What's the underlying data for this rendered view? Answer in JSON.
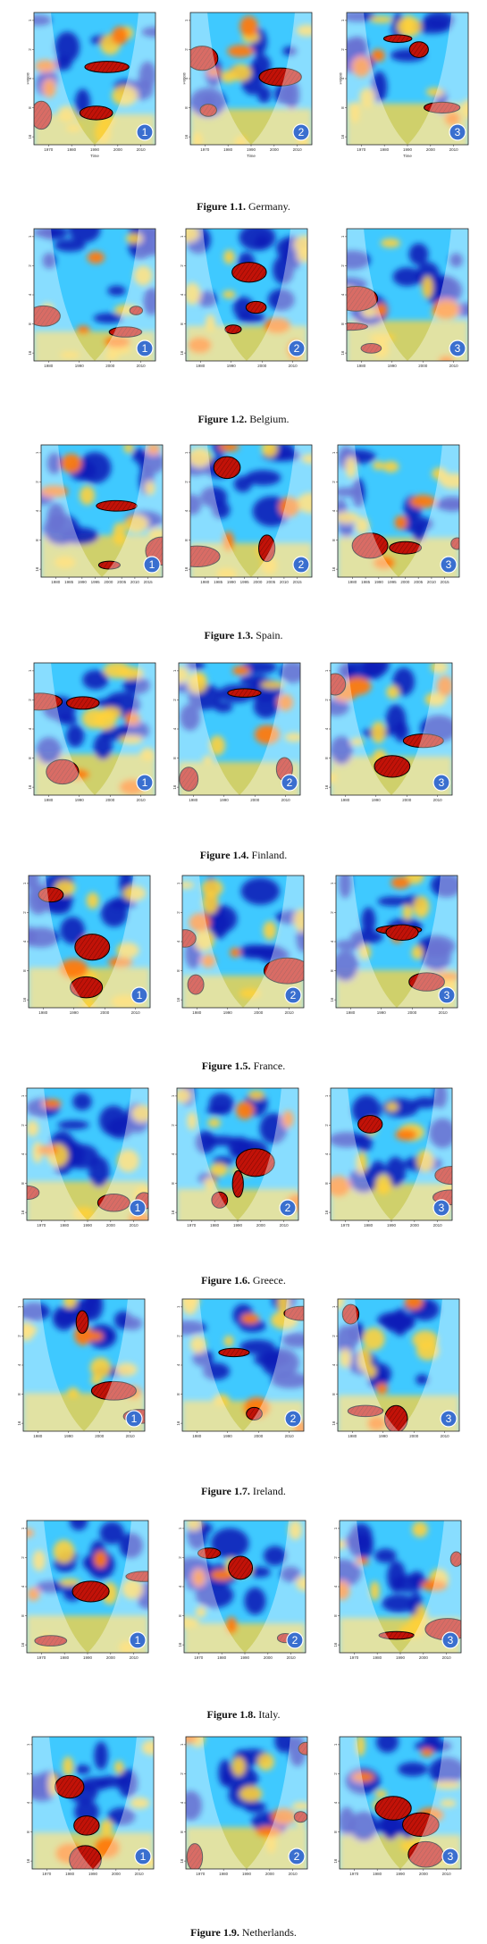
{
  "figures": [
    {
      "label": "Figure 1.1.",
      "country": "Germany.",
      "axis": {
        "x_ticks": [
          "1970",
          "1980",
          "1990",
          "2000",
          "2010"
        ],
        "x_title": "Time",
        "y_title": "Period",
        "y_ticks": [
          "1",
          "2",
          "4",
          "8",
          "16"
        ]
      },
      "panels": [
        "1",
        "2",
        "3"
      ]
    },
    {
      "label": "Figure 1.2.",
      "country": "Belgium.",
      "axis": {
        "x_ticks": [
          "1980",
          "1990",
          "2000",
          "2010"
        ],
        "x_title": "",
        "y_title": "",
        "y_ticks": [
          "1",
          "2",
          "4",
          "8",
          "16"
        ]
      },
      "panels": [
        "1",
        "2",
        "3"
      ]
    },
    {
      "label": "Figure 1.3.",
      "country": "Spain.",
      "axis": {
        "x_ticks": [
          "1980",
          "1985",
          "1990",
          "1995",
          "2000",
          "2005",
          "2010",
          "2015"
        ],
        "x_title": "",
        "y_title": "",
        "y_ticks": [
          "1",
          "2",
          "4",
          "8",
          "16"
        ]
      },
      "panels": [
        "1",
        "2",
        "3"
      ]
    },
    {
      "label": "Figure 1.4.",
      "country": "Finland.",
      "axis": {
        "x_ticks": [
          "1980",
          "1990",
          "2000",
          "2010"
        ],
        "x_title": "",
        "y_title": "",
        "y_ticks": [
          "1",
          "2",
          "4",
          "8",
          "16"
        ]
      },
      "panels": [
        "1",
        "2",
        "3"
      ]
    },
    {
      "label": "Figure 1.5.",
      "country": "France.",
      "axis": {
        "x_ticks": [
          "1980",
          "1990",
          "2000",
          "2010"
        ],
        "x_title": "",
        "y_title": "",
        "y_ticks": [
          "1",
          "2",
          "4",
          "8",
          "16"
        ]
      },
      "panels": [
        "1",
        "2",
        "3"
      ]
    },
    {
      "label": "Figure 1.6.",
      "country": "Greece.",
      "axis": {
        "x_ticks": [
          "1970",
          "1980",
          "1990",
          "2000",
          "2010"
        ],
        "x_title": "",
        "y_title": "",
        "y_ticks": [
          "1",
          "2",
          "4",
          "8",
          "16"
        ]
      },
      "panels": [
        "1",
        "2",
        "3"
      ]
    },
    {
      "label": "Figure 1.7.",
      "country": "Ireland.",
      "axis": {
        "x_ticks": [
          "1980",
          "1990",
          "2000",
          "2010"
        ],
        "x_title": "",
        "y_title": "",
        "y_ticks": [
          "1",
          "2",
          "4",
          "8",
          "16"
        ]
      },
      "panels": [
        "1",
        "2",
        "3"
      ]
    },
    {
      "label": "Figure 1.8.",
      "country": "Italy.",
      "axis": {
        "x_ticks": [
          "1970",
          "1980",
          "1990",
          "2000",
          "2010"
        ],
        "x_title": "",
        "y_title": "",
        "y_ticks": [
          "1",
          "2",
          "4",
          "8",
          "16"
        ]
      },
      "panels": [
        "1",
        "2",
        "3"
      ]
    },
    {
      "label": "Figure 1.9.",
      "country": "Netherlands.",
      "axis": {
        "x_ticks": [
          "1970",
          "1980",
          "1990",
          "2000",
          "2010"
        ],
        "x_title": "",
        "y_title": "",
        "y_ticks": [
          "1",
          "2",
          "4",
          "8",
          "16"
        ]
      },
      "panels": [
        "1",
        "2",
        "3"
      ]
    }
  ],
  "colors": {
    "field": "#3fc9ff",
    "deep": "#0a1fb8",
    "warm": "#ffd23a",
    "orange": "#ff7a10",
    "hot": "#c21208",
    "badge": "#3a6fcf"
  }
}
